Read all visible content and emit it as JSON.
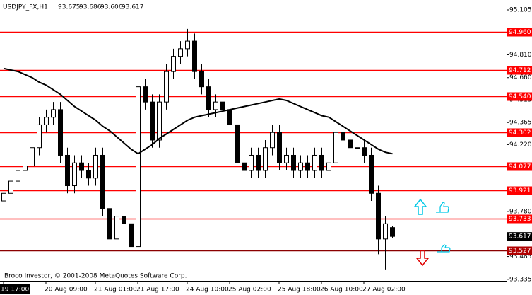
{
  "chart_data": {
    "type": "candlestick",
    "title": "USDJPY_FX,H1",
    "footer": "Broco Investor, © 2001-2008 MetaQuotes Software Corp.",
    "categories": [
      "19 17:00",
      null,
      null,
      null,
      null,
      null,
      "20 Aug 09:00",
      null,
      null,
      null,
      null,
      null,
      null,
      "21 Aug 01:00",
      null,
      null,
      null,
      null,
      null,
      "21 Aug 17:00",
      null,
      null,
      null,
      null,
      null,
      null,
      "24 Aug 10:00",
      null,
      null,
      null,
      null,
      null,
      "25 Aug 02:00",
      null,
      null,
      null,
      null,
      null,
      null,
      "25 Aug 18:00",
      null,
      null,
      null,
      null,
      null,
      "26 Aug 10:00",
      null,
      null,
      null,
      null,
      null,
      "27 Aug 02:00",
      null,
      null,
      null,
      null
    ],
    "open": [
      93.85,
      93.9,
      93.98,
      94.05,
      94.08,
      94.2,
      94.35,
      94.4,
      94.45,
      94.15,
      93.95,
      94.1,
      94.05,
      94.0,
      94.15,
      93.8,
      93.6,
      93.75,
      93.7,
      93.55,
      94.6,
      94.5,
      94.25,
      94.5,
      94.7,
      94.8,
      94.85,
      94.9,
      94.7,
      94.6,
      94.45,
      94.5,
      94.45,
      94.35,
      94.1,
      94.05,
      94.15,
      94.05,
      94.2,
      94.3,
      94.1,
      94.15,
      94.05,
      94.1,
      94.05,
      94.15,
      94.05,
      94.1,
      94.3,
      94.25,
      94.2,
      94.2,
      94.15,
      93.9,
      93.6,
      93.675
    ],
    "high": [
      93.95,
      94.03,
      94.1,
      94.13,
      94.25,
      94.4,
      94.45,
      94.5,
      94.5,
      94.2,
      94.15,
      94.15,
      94.1,
      94.2,
      94.2,
      93.85,
      93.8,
      93.8,
      93.75,
      94.65,
      94.65,
      94.55,
      94.55,
      94.75,
      94.85,
      94.9,
      94.98,
      94.95,
      94.75,
      94.65,
      94.55,
      94.55,
      94.5,
      94.4,
      94.15,
      94.2,
      94.2,
      94.25,
      94.35,
      94.35,
      94.2,
      94.2,
      94.15,
      94.15,
      94.2,
      94.2,
      94.15,
      94.5,
      94.35,
      94.3,
      94.25,
      94.25,
      94.2,
      93.95,
      93.75,
      93.686
    ],
    "low": [
      93.8,
      93.85,
      93.93,
      94.0,
      94.03,
      94.15,
      94.3,
      94.35,
      94.1,
      93.9,
      93.9,
      94.0,
      93.95,
      93.95,
      93.75,
      93.55,
      93.55,
      93.65,
      93.5,
      93.5,
      94.45,
      94.2,
      94.2,
      94.45,
      94.65,
      94.75,
      94.8,
      94.65,
      94.55,
      94.4,
      94.4,
      94.4,
      94.3,
      94.05,
      94.0,
      94.0,
      94.0,
      94.0,
      94.15,
      94.05,
      94.05,
      94.0,
      94.0,
      94.0,
      94.0,
      94.0,
      94.0,
      94.05,
      94.2,
      94.15,
      94.15,
      94.1,
      93.85,
      93.5,
      93.4,
      93.606
    ],
    "close": [
      93.9,
      93.98,
      94.05,
      94.08,
      94.2,
      94.35,
      94.4,
      94.45,
      94.15,
      93.95,
      94.1,
      94.05,
      94.0,
      94.15,
      93.8,
      93.6,
      93.75,
      93.7,
      93.55,
      94.6,
      94.5,
      94.25,
      94.5,
      94.7,
      94.8,
      94.85,
      94.9,
      94.7,
      94.6,
      94.45,
      94.5,
      94.45,
      94.35,
      94.1,
      94.05,
      94.15,
      94.05,
      94.2,
      94.3,
      94.1,
      94.15,
      94.05,
      94.1,
      94.05,
      94.15,
      94.05,
      94.1,
      94.3,
      94.25,
      94.2,
      94.2,
      94.15,
      93.9,
      93.6,
      93.7,
      93.617
    ],
    "moving_average": [
      94.72,
      94.71,
      94.7,
      94.68,
      94.66,
      94.63,
      94.61,
      94.58,
      94.55,
      94.51,
      94.47,
      94.44,
      94.41,
      94.38,
      94.34,
      94.31,
      94.27,
      94.23,
      94.19,
      94.16,
      94.19,
      94.22,
      94.26,
      94.29,
      94.32,
      94.35,
      94.38,
      94.4,
      94.41,
      94.42,
      94.43,
      94.44,
      94.45,
      94.46,
      94.47,
      94.48,
      94.49,
      94.5,
      94.51,
      94.52,
      94.51,
      94.49,
      94.47,
      94.45,
      94.43,
      94.41,
      94.4,
      94.37,
      94.34,
      94.31,
      94.28,
      94.25,
      94.22,
      94.19,
      94.17,
      94.16
    ],
    "levels": [
      {
        "value": 94.96,
        "label": "94.960"
      },
      94.712,
      {
        "value": 94.54,
        "label": "94.540"
      },
      94.302,
      94.077,
      93.921,
      93.733,
      93.527
    ],
    "ylim": [
      93.325,
      95.17
    ],
    "yticks": [
      95.105,
      {
        "value": 94.81,
        "label": "94.810"
      },
      {
        "value": 94.66,
        "label": "94.660"
      },
      94.515,
      94.365,
      {
        "value": 94.22,
        "label": "94.220"
      },
      {
        "value": 93.78,
        "label": "93.780"
      },
      93.485,
      93.335
    ],
    "level_color": "#ff0000",
    "candle_color": "#000000"
  }
}
